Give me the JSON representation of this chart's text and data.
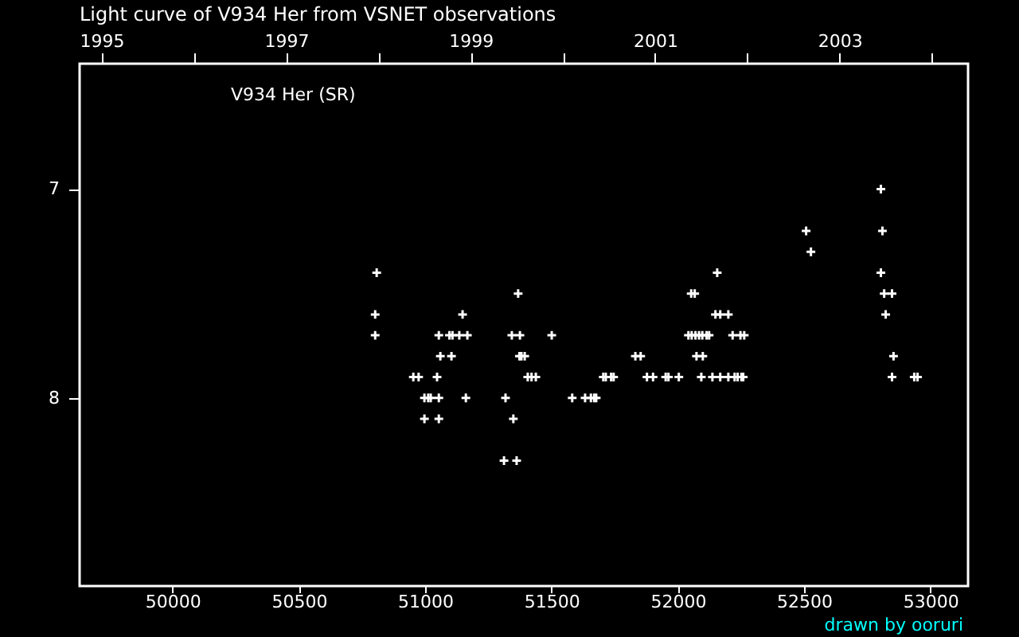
{
  "chart_data": {
    "type": "scatter",
    "title": "Light curve of V934 Her from VSNET observations",
    "x": [
      50802,
      50802,
      50808,
      50953,
      50974,
      50997,
      50997,
      51012,
      51022,
      51047,
      51054,
      51054,
      51054,
      51060,
      51096,
      51104,
      51108,
      51135,
      51148,
      51161,
      51167,
      51312,
      51318,
      51343,
      51349,
      51362,
      51368,
      51373,
      51375,
      51381,
      51394,
      51406,
      51421,
      51438,
      51501,
      51582,
      51633,
      51656,
      51669,
      51677,
      51705,
      51715,
      51736,
      51746,
      51832,
      51853,
      51878,
      51902,
      51952,
      51963,
      52004,
      52042,
      52053,
      52055,
      52067,
      52070,
      52074,
      52084,
      52093,
      52097,
      52099,
      52114,
      52124,
      52137,
      52149,
      52156,
      52168,
      52168,
      52200,
      52200,
      52217,
      52225,
      52237,
      52248,
      52252,
      52259,
      52263,
      52508,
      52527,
      52804,
      52804,
      52810,
      52817,
      52823,
      52848,
      52848,
      52854,
      52936,
      52949
    ],
    "values": [
      7.6,
      7.7,
      7.4,
      7.9,
      7.9,
      8.0,
      8.1,
      8.0,
      8.0,
      7.9,
      7.7,
      8.0,
      8.1,
      7.8,
      7.7,
      7.8,
      7.7,
      7.7,
      7.6,
      8.0,
      7.7,
      8.3,
      8.0,
      7.7,
      8.1,
      8.3,
      7.5,
      7.8,
      7.7,
      7.8,
      7.8,
      7.9,
      7.9,
      7.9,
      7.7,
      8.0,
      8.0,
      8.0,
      8.0,
      8.0,
      7.9,
      7.9,
      7.9,
      7.9,
      7.8,
      7.8,
      7.9,
      7.9,
      7.9,
      7.9,
      7.9,
      7.7,
      7.5,
      7.7,
      7.5,
      7.7,
      7.8,
      7.7,
      7.9,
      7.7,
      7.8,
      7.7,
      7.7,
      7.9,
      7.6,
      7.4,
      7.6,
      7.9,
      7.6,
      7.9,
      7.7,
      7.9,
      7.9,
      7.7,
      7.9,
      7.9,
      7.7,
      7.2,
      7.3,
      7.0,
      7.4,
      7.2,
      7.5,
      7.6,
      7.5,
      7.9,
      7.8,
      7.9,
      7.9
    ],
    "color": "#ffffff",
    "marker": "cross",
    "grid": false,
    "xlim": [
      49632,
      53149
    ],
    "xticks": [
      50000,
      50500,
      51000,
      51500,
      52000,
      52500,
      53000
    ],
    "x2lim": [
      1994.762,
      2004.391
    ],
    "x2ticks": [
      1995,
      {
        "value": 1996,
        "label": null
      },
      1997,
      {
        "value": 1998,
        "label": null
      },
      1999,
      {
        "value": 2000,
        "label": null
      },
      2001,
      {
        "value": 2002,
        "label": null
      },
      2003,
      {
        "value": 2004,
        "label": null
      }
    ],
    "ylim": [
      8.9,
      6.4
    ],
    "yticks": [
      7,
      8
    ],
    "annotations": [
      "V934 Her (SR)",
      "drawn by ooruri"
    ]
  }
}
